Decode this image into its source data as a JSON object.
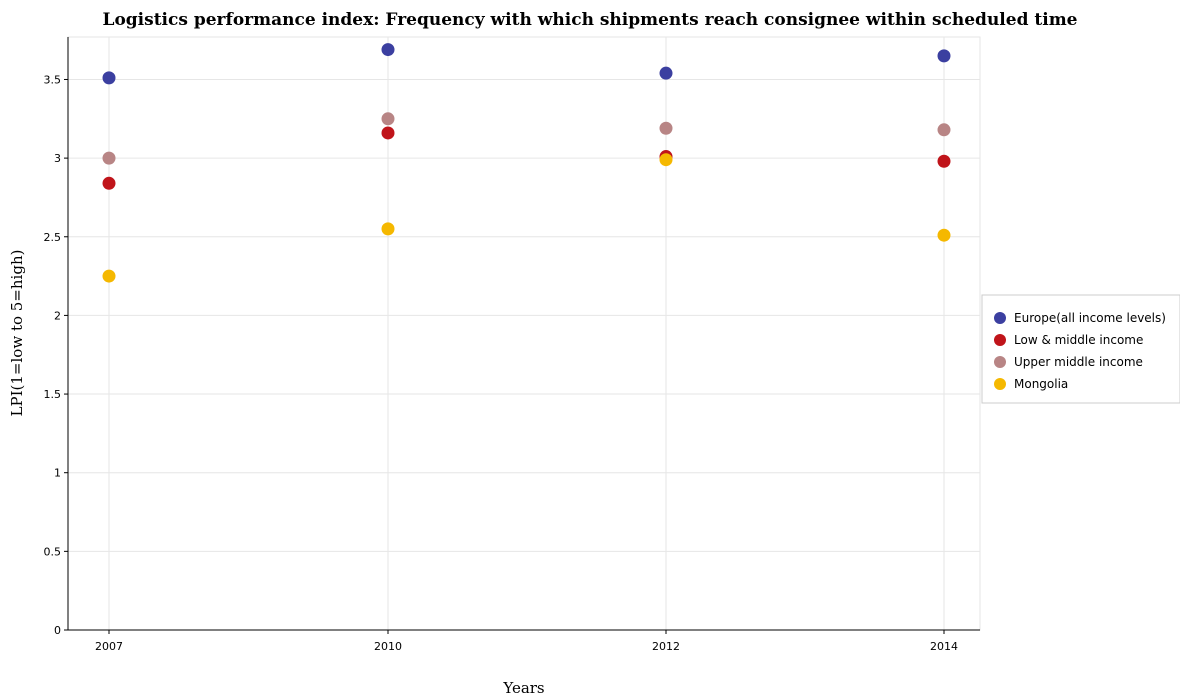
{
  "chart_data": {
    "type": "scatter",
    "title": "Logistics performance index: Frequency with which shipments reach consignee within scheduled time",
    "xlabel": "Years",
    "ylabel": "LPI(1=low to 5=high)",
    "categories": [
      "2007",
      "2010",
      "2012",
      "2014"
    ],
    "ylim": [
      0,
      3.77
    ],
    "yticks": [
      0,
      0.5,
      1,
      1.5,
      2,
      2.5,
      3,
      3.5
    ],
    "ytick_labels": [
      "0",
      "0.5",
      "1",
      "1.5",
      "2",
      "2.5",
      "3",
      "3.5"
    ],
    "grid": true,
    "legend_position": "right",
    "series": [
      {
        "name": "Europe(all income levels)",
        "color": "#3b3fa0",
        "values": [
          3.51,
          3.69,
          3.54,
          3.65
        ]
      },
      {
        "name": "Low & middle income",
        "color": "#c0141a",
        "values": [
          2.84,
          3.16,
          3.01,
          2.98
        ]
      },
      {
        "name": "Upper middle income",
        "color": "#b88585",
        "values": [
          3.0,
          3.25,
          3.19,
          3.18
        ]
      },
      {
        "name": "Mongolia",
        "color": "#f5b800",
        "values": [
          2.25,
          2.55,
          2.99,
          2.51
        ]
      }
    ]
  }
}
